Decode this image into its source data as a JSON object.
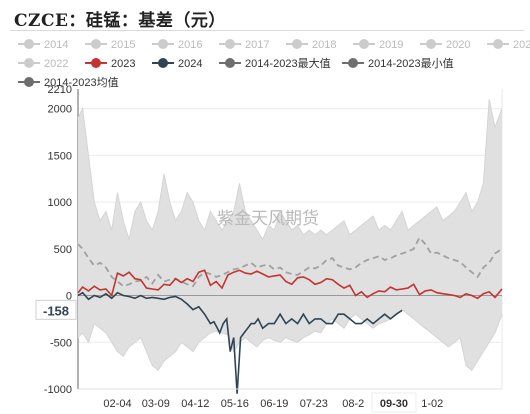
{
  "title": "CZCE：硅锰：基差（元）",
  "colors": {
    "inactive": "#cccccc",
    "s2023": "#c23531",
    "s2024": "#2f4554",
    "max": "#6e6e6e",
    "min": "#6e6e6e",
    "avg": "#a0a0a0",
    "range_fill": "#e0e0e0"
  },
  "legend": [
    {
      "name": "2014",
      "icon": "circle-line-icon",
      "active": false
    },
    {
      "name": "2015",
      "icon": "circle-line-icon",
      "active": false
    },
    {
      "name": "2016",
      "icon": "circle-line-icon",
      "active": false
    },
    {
      "name": "2017",
      "icon": "circle-line-icon",
      "active": false
    },
    {
      "name": "2018",
      "icon": "circle-line-icon",
      "active": false
    },
    {
      "name": "2019",
      "icon": "circle-line-icon",
      "active": false
    },
    {
      "name": "2020",
      "icon": "circle-line-icon",
      "active": false
    },
    {
      "name": "2021",
      "icon": "circle-line-icon",
      "active": false
    },
    {
      "name": "2022",
      "icon": "circle-line-icon",
      "active": false
    },
    {
      "name": "2023",
      "icon": "circle-line-icon",
      "active": true,
      "color": "#c23531"
    },
    {
      "name": "2024",
      "icon": "circle-line-icon",
      "active": true,
      "color": "#2f4554"
    },
    {
      "name": "2014-2023最大值",
      "icon": "circle-line-icon",
      "active": true,
      "color": "#6e6e6e"
    },
    {
      "name": "2014-2023最小值",
      "icon": "circle-line-icon",
      "active": true,
      "color": "#6e6e6e"
    },
    {
      "name": "2014-2023均值",
      "icon": "circle-line-icon",
      "active": true,
      "color": "#6e6e6e"
    }
  ],
  "watermark": "紫金天风期货",
  "chart_data": {
    "type": "line",
    "x_tick_labels": [
      "02-04",
      "03-09",
      "04-12",
      "05-16",
      "06-19",
      "07-23",
      "08-2",
      "09-30",
      "1-02"
    ],
    "x_tick_days": [
      35,
      68,
      102,
      136,
      170,
      204,
      238,
      273,
      306
    ],
    "highlighted_x_label": "09-30",
    "xlim": [
      1,
      366
    ],
    "ylim": [
      -1000,
      2210
    ],
    "y_ticks": [
      -1000,
      -500,
      0,
      500,
      1000,
      1500,
      2000,
      2210
    ],
    "current_value_label": "-158",
    "series": [
      {
        "name": "2023",
        "color": "#c23531",
        "x": [
          1,
          5,
          10,
          15,
          20,
          25,
          30,
          35,
          40,
          45,
          50,
          55,
          60,
          65,
          70,
          75,
          80,
          85,
          90,
          95,
          100,
          105,
          110,
          115,
          120,
          125,
          130,
          135,
          140,
          145,
          150,
          155,
          160,
          165,
          170,
          175,
          180,
          185,
          190,
          195,
          200,
          205,
          210,
          215,
          220,
          225,
          230,
          235,
          240,
          245,
          250,
          255,
          260,
          265,
          270,
          275,
          280,
          285,
          290,
          295,
          300,
          305,
          310,
          315,
          320,
          325,
          330,
          335,
          340,
          345,
          350,
          355,
          360,
          366
        ],
        "y": [
          30,
          90,
          50,
          100,
          60,
          70,
          0,
          240,
          210,
          250,
          180,
          170,
          80,
          70,
          60,
          120,
          110,
          180,
          140,
          180,
          150,
          250,
          270,
          110,
          150,
          80,
          220,
          250,
          270,
          240,
          230,
          260,
          230,
          200,
          210,
          220,
          150,
          120,
          190,
          200,
          170,
          120,
          140,
          180,
          170,
          120,
          80,
          110,
          0,
          40,
          -20,
          20,
          50,
          40,
          90,
          60,
          70,
          80,
          120,
          10,
          50,
          60,
          30,
          20,
          10,
          0,
          -20,
          20,
          0,
          -30,
          20,
          40,
          -20,
          70
        ]
      },
      {
        "name": "2024",
        "color": "#2f4554",
        "x": [
          1,
          5,
          10,
          15,
          20,
          25,
          30,
          35,
          40,
          45,
          50,
          55,
          60,
          65,
          70,
          75,
          80,
          85,
          90,
          95,
          100,
          105,
          110,
          115,
          118,
          121,
          123,
          126,
          129,
          132,
          135,
          138,
          141,
          144,
          147,
          150,
          153,
          156,
          160,
          165,
          170,
          175,
          180,
          185,
          190,
          195,
          200,
          205,
          210,
          215,
          220,
          225,
          230,
          235,
          240,
          245,
          250,
          255,
          260,
          265,
          270,
          275,
          280
        ],
        "y": [
          0,
          30,
          -40,
          0,
          -20,
          20,
          -30,
          30,
          0,
          -10,
          -30,
          0,
          -30,
          -20,
          -30,
          -40,
          -20,
          -10,
          -40,
          -90,
          -150,
          -120,
          -200,
          -300,
          -280,
          -350,
          -400,
          -300,
          -250,
          -600,
          -450,
          -1050,
          -450,
          -400,
          -350,
          -300,
          -300,
          -250,
          -350,
          -300,
          -300,
          -200,
          -300,
          -250,
          -300,
          -200,
          -300,
          -250,
          -250,
          -300,
          -300,
          -200,
          -200,
          -250,
          -300,
          -300,
          -250,
          -300,
          -250,
          -200,
          -250,
          -200,
          -158
        ]
      },
      {
        "name": "2014-2023均值",
        "color": "#a0a0a0",
        "dashed": true,
        "x": [
          1,
          5,
          10,
          15,
          20,
          25,
          30,
          35,
          40,
          45,
          50,
          55,
          60,
          65,
          70,
          75,
          80,
          85,
          90,
          95,
          100,
          105,
          110,
          115,
          120,
          125,
          130,
          135,
          140,
          145,
          150,
          155,
          160,
          165,
          170,
          175,
          180,
          185,
          190,
          195,
          200,
          205,
          210,
          215,
          220,
          225,
          230,
          235,
          240,
          245,
          250,
          255,
          260,
          265,
          270,
          275,
          280,
          285,
          290,
          295,
          300,
          305,
          310,
          315,
          320,
          325,
          330,
          335,
          340,
          345,
          350,
          355,
          360,
          366
        ],
        "y": [
          550,
          500,
          400,
          320,
          350,
          300,
          200,
          150,
          100,
          120,
          150,
          160,
          200,
          130,
          220,
          150,
          170,
          180,
          150,
          120,
          100,
          200,
          250,
          230,
          200,
          220,
          250,
          280,
          290,
          320,
          350,
          300,
          320,
          330,
          280,
          300,
          250,
          230,
          220,
          260,
          300,
          290,
          320,
          380,
          400,
          320,
          300,
          280,
          300,
          350,
          380,
          400,
          420,
          380,
          400,
          430,
          450,
          470,
          500,
          620,
          550,
          450,
          460,
          430,
          400,
          380,
          360,
          300,
          250,
          200,
          300,
          350,
          450,
          500
        ]
      },
      {
        "name": "2014-2023最大值",
        "color": "#e0e0e0",
        "x": [
          1,
          5,
          10,
          15,
          20,
          25,
          30,
          35,
          40,
          45,
          50,
          55,
          60,
          65,
          70,
          75,
          80,
          85,
          90,
          95,
          100,
          105,
          110,
          115,
          120,
          125,
          130,
          135,
          140,
          145,
          150,
          155,
          160,
          165,
          170,
          175,
          180,
          185,
          190,
          195,
          200,
          205,
          210,
          215,
          220,
          225,
          230,
          235,
          240,
          245,
          250,
          255,
          260,
          265,
          270,
          275,
          280,
          285,
          290,
          295,
          300,
          305,
          310,
          315,
          320,
          325,
          330,
          335,
          340,
          345,
          350,
          355,
          360,
          366
        ],
        "y": [
          1900,
          2000,
          1500,
          1000,
          800,
          900,
          700,
          1100,
          800,
          600,
          900,
          1000,
          800,
          700,
          900,
          1300,
          1000,
          800,
          900,
          1100,
          1000,
          800,
          700,
          900,
          800,
          700,
          800,
          900,
          1200,
          900,
          800,
          700,
          600,
          750,
          700,
          900,
          800,
          700,
          750,
          650,
          700,
          650,
          700,
          650,
          700,
          750,
          800,
          650,
          700,
          750,
          800,
          850,
          700,
          750,
          700,
          800,
          900,
          700,
          750,
          800,
          850,
          900,
          950,
          800,
          850,
          900,
          1000,
          1100,
          900,
          1000,
          1200,
          2100,
          1800,
          2000
        ]
      },
      {
        "name": "2014-2023最小值",
        "color": "#e0e0e0",
        "x": [
          1,
          5,
          10,
          15,
          20,
          25,
          30,
          35,
          40,
          45,
          50,
          55,
          60,
          65,
          70,
          75,
          80,
          85,
          90,
          95,
          100,
          105,
          110,
          115,
          120,
          125,
          130,
          135,
          140,
          145,
          150,
          155,
          160,
          165,
          170,
          175,
          180,
          185,
          190,
          195,
          200,
          205,
          210,
          215,
          220,
          225,
          230,
          235,
          240,
          245,
          250,
          255,
          260,
          265,
          270,
          275,
          280,
          285,
          290,
          295,
          300,
          305,
          310,
          315,
          320,
          325,
          330,
          335,
          340,
          345,
          350,
          355,
          360,
          366
        ],
        "y": [
          -450,
          -400,
          -500,
          -300,
          -350,
          -400,
          -500,
          -600,
          -650,
          -550,
          -500,
          -450,
          -600,
          -750,
          -800,
          -700,
          -650,
          -600,
          -500,
          -550,
          -600,
          -500,
          -450,
          -400,
          -380,
          -400,
          -420,
          -600,
          -500,
          -450,
          -500,
          -550,
          -480,
          -450,
          -480,
          -500,
          -450,
          -480,
          -500,
          -450,
          -420,
          -380,
          -400,
          -300,
          -250,
          -300,
          -350,
          -250,
          -200,
          -250,
          -300,
          -350,
          -300,
          -280,
          -250,
          -200,
          -150,
          -200,
          -250,
          -300,
          -350,
          -400,
          -450,
          -500,
          -550,
          -500,
          -450,
          -750,
          -800,
          -700,
          -600,
          -500,
          -400,
          -200
        ]
      }
    ]
  }
}
